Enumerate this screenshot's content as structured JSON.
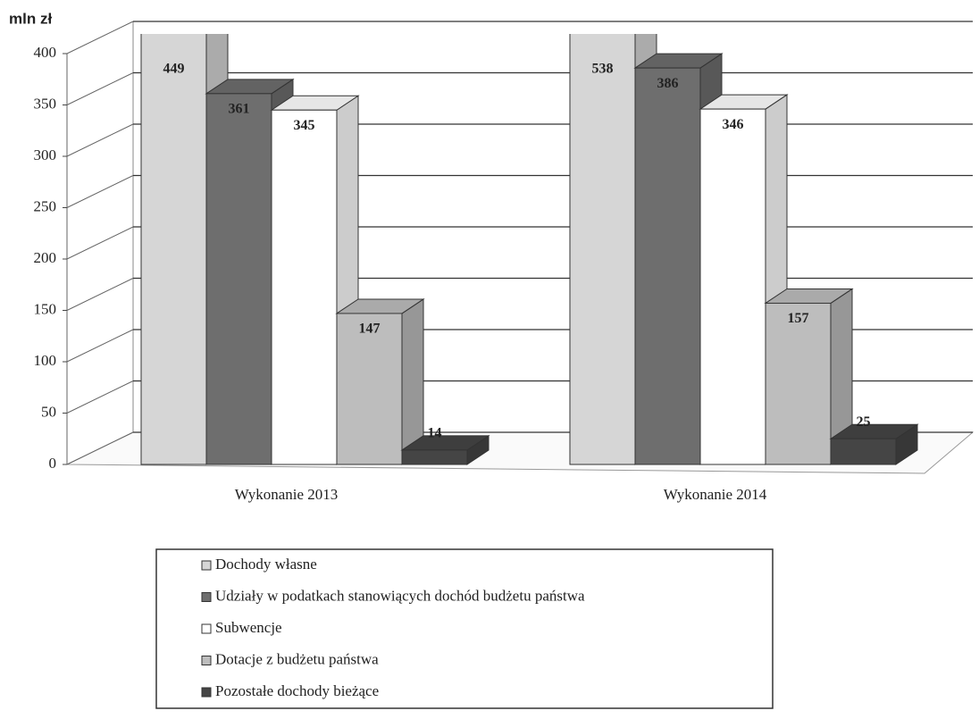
{
  "chart_data": {
    "type": "bar3d",
    "y_axis_label": "mln zł",
    "categories": [
      "Wykonanie 2013",
      "Wykonanie 2014"
    ],
    "series": [
      {
        "name": "Dochody własne",
        "color": "#d6d6d6",
        "values": [
          449,
          538
        ]
      },
      {
        "name": "Udziały w podatkach stanowiących dochód budżetu państwa",
        "color": "#6e6e6e",
        "values": [
          361,
          386
        ]
      },
      {
        "name": "Subwencje",
        "color": "#ffffff",
        "values": [
          345,
          346
        ]
      },
      {
        "name": "Dotacje z budżetu państwa",
        "color": "#bdbdbd",
        "values": [
          147,
          157
        ]
      },
      {
        "name": "Pozostałe dochody bieżące",
        "color": "#454545",
        "values": [
          14,
          25
        ]
      }
    ],
    "ylim": [
      0,
      400
    ],
    "yticks": [
      0,
      50,
      100,
      150,
      200,
      250,
      300,
      350,
      400
    ],
    "grid": true
  }
}
